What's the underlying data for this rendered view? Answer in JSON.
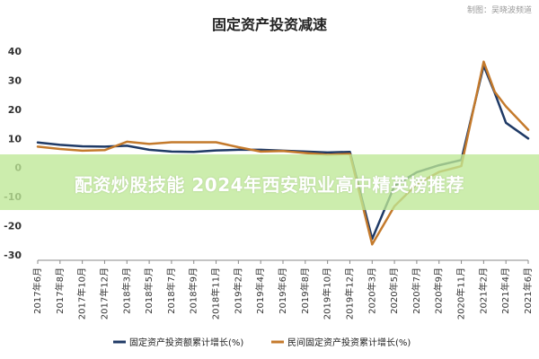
{
  "credit": "制图：吴晓波频道",
  "banner_text": "配资炒股技能 2024年西安职业高中精英榜推荐",
  "chart_data": {
    "type": "line",
    "title": "固定资产投资减速",
    "ylim": [
      -30,
      40
    ],
    "yticks": [
      -30,
      -20,
      -10,
      0,
      10,
      20,
      30,
      40
    ],
    "grid": false,
    "legend_position": "bottom",
    "x_labels": [
      "2017年6月",
      "2017年8月",
      "2017年10月",
      "2017年12月",
      "2018年3月",
      "2018年5月",
      "2018年7月",
      "2018年9月",
      "2018年11月",
      "2019年2月",
      "2019年4月",
      "2019年6月",
      "2019年8月",
      "2019年10月",
      "2019年12月",
      "2020年3月",
      "2020年5月",
      "2020年7月",
      "2020年9月",
      "2020年11月",
      "2021年2月",
      "2021年4月",
      "2021年6月"
    ],
    "series": [
      {
        "name": "固定资产投资额累计增长(%)",
        "color": "#1f3a66",
        "values": [
          8.6,
          7.8,
          7.3,
          7.2,
          7.5,
          6.1,
          5.5,
          5.4,
          5.9,
          6.1,
          6.1,
          5.8,
          5.5,
          5.2,
          5.4,
          -24.5,
          -6.3,
          -1.6,
          0.8,
          2.6,
          35.0,
          25.6,
          15.4,
          10.0
        ],
        "x_index": [
          0,
          1,
          2,
          3,
          4,
          5,
          6,
          7,
          8,
          9,
          10,
          11,
          12,
          13,
          14,
          15,
          16,
          17,
          18,
          19,
          20,
          20.5,
          21,
          22
        ]
      },
      {
        "name": "民间固定资产投资累计增长(%)",
        "color": "#c47a2c",
        "values": [
          7.2,
          6.4,
          5.8,
          6.0,
          8.9,
          8.1,
          8.7,
          8.7,
          8.7,
          7.0,
          5.5,
          5.7,
          5.0,
          4.4,
          4.7,
          -26.4,
          -13.3,
          -5.7,
          -1.5,
          0.5,
          36.4,
          26.0,
          21.0,
          13.0
        ],
        "x_index": [
          0,
          1,
          2,
          3,
          4,
          5,
          6,
          7,
          8,
          9,
          10,
          11,
          12,
          13,
          14,
          15,
          16,
          17,
          18,
          19,
          20,
          20.5,
          21,
          22
        ]
      }
    ]
  }
}
